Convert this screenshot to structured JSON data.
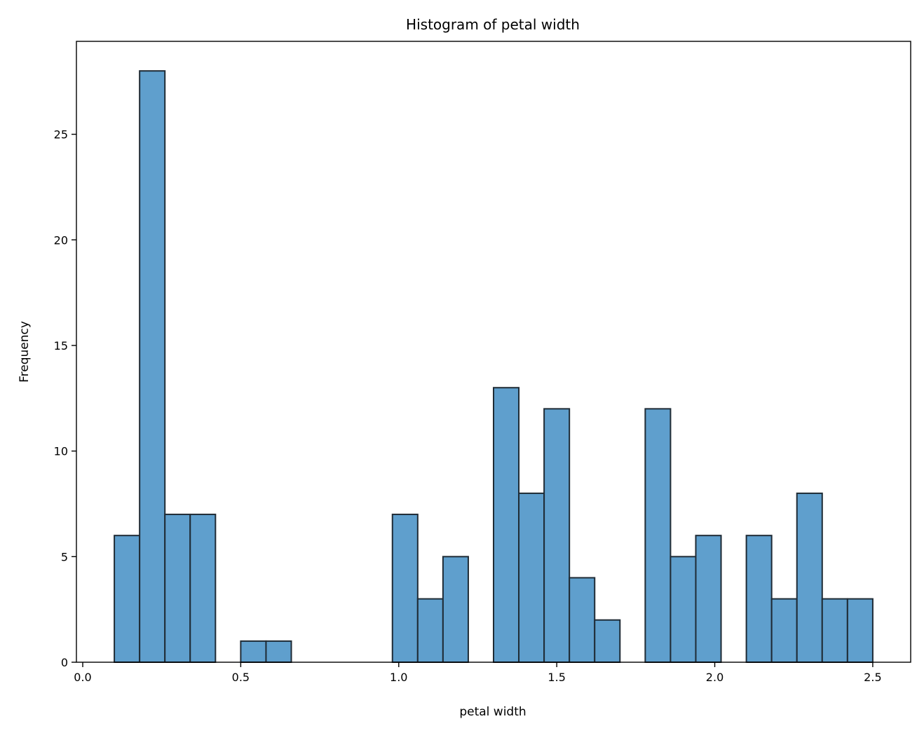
{
  "chart_data": {
    "type": "bar",
    "title": "Histogram of petal width",
    "xlabel": "petal width",
    "ylabel": "Frequency",
    "xlim": [
      -0.02,
      2.62
    ],
    "ylim": [
      0,
      29.4
    ],
    "grid": false,
    "legend": "none",
    "bar_color": "#5f9fcd",
    "edge_color": "#1f2b35",
    "bin_width": 0.08,
    "bins": [
      {
        "x0": 0.1,
        "x1": 0.18,
        "value": 6
      },
      {
        "x0": 0.18,
        "x1": 0.26,
        "value": 28
      },
      {
        "x0": 0.26,
        "x1": 0.34,
        "value": 7
      },
      {
        "x0": 0.34,
        "x1": 0.42,
        "value": 7
      },
      {
        "x0": 0.42,
        "x1": 0.5,
        "value": 0
      },
      {
        "x0": 0.5,
        "x1": 0.58,
        "value": 1
      },
      {
        "x0": 0.58,
        "x1": 0.66,
        "value": 1
      },
      {
        "x0": 0.66,
        "x1": 0.74,
        "value": 0
      },
      {
        "x0": 0.74,
        "x1": 0.82,
        "value": 0
      },
      {
        "x0": 0.82,
        "x1": 0.9,
        "value": 0
      },
      {
        "x0": 0.9,
        "x1": 0.98,
        "value": 0
      },
      {
        "x0": 0.98,
        "x1": 1.06,
        "value": 7
      },
      {
        "x0": 1.06,
        "x1": 1.14,
        "value": 3
      },
      {
        "x0": 1.14,
        "x1": 1.22,
        "value": 5
      },
      {
        "x0": 1.22,
        "x1": 1.3,
        "value": 0
      },
      {
        "x0": 1.3,
        "x1": 1.38,
        "value": 13
      },
      {
        "x0": 1.38,
        "x1": 1.46,
        "value": 8
      },
      {
        "x0": 1.46,
        "x1": 1.54,
        "value": 12
      },
      {
        "x0": 1.54,
        "x1": 1.62,
        "value": 4
      },
      {
        "x0": 1.62,
        "x1": 1.7,
        "value": 2
      },
      {
        "x0": 1.7,
        "x1": 1.78,
        "value": 0
      },
      {
        "x0": 1.78,
        "x1": 1.86,
        "value": 12
      },
      {
        "x0": 1.86,
        "x1": 1.94,
        "value": 5
      },
      {
        "x0": 1.94,
        "x1": 2.02,
        "value": 6
      },
      {
        "x0": 2.02,
        "x1": 2.1,
        "value": 0
      },
      {
        "x0": 2.1,
        "x1": 2.18,
        "value": 6
      },
      {
        "x0": 2.18,
        "x1": 2.26,
        "value": 3
      },
      {
        "x0": 2.26,
        "x1": 2.34,
        "value": 8
      },
      {
        "x0": 2.34,
        "x1": 2.42,
        "value": 3
      },
      {
        "x0": 2.42,
        "x1": 2.5,
        "value": 3
      }
    ],
    "x_ticks": [
      0.0,
      0.5,
      1.0,
      1.5,
      2.0,
      2.5
    ],
    "x_tick_labels": [
      "0.0",
      "0.5",
      "1.0",
      "1.5",
      "2.0",
      "2.5"
    ],
    "y_ticks": [
      0,
      5,
      10,
      15,
      20,
      25
    ],
    "y_tick_labels": [
      "0",
      "5",
      "10",
      "15",
      "20",
      "25"
    ]
  }
}
